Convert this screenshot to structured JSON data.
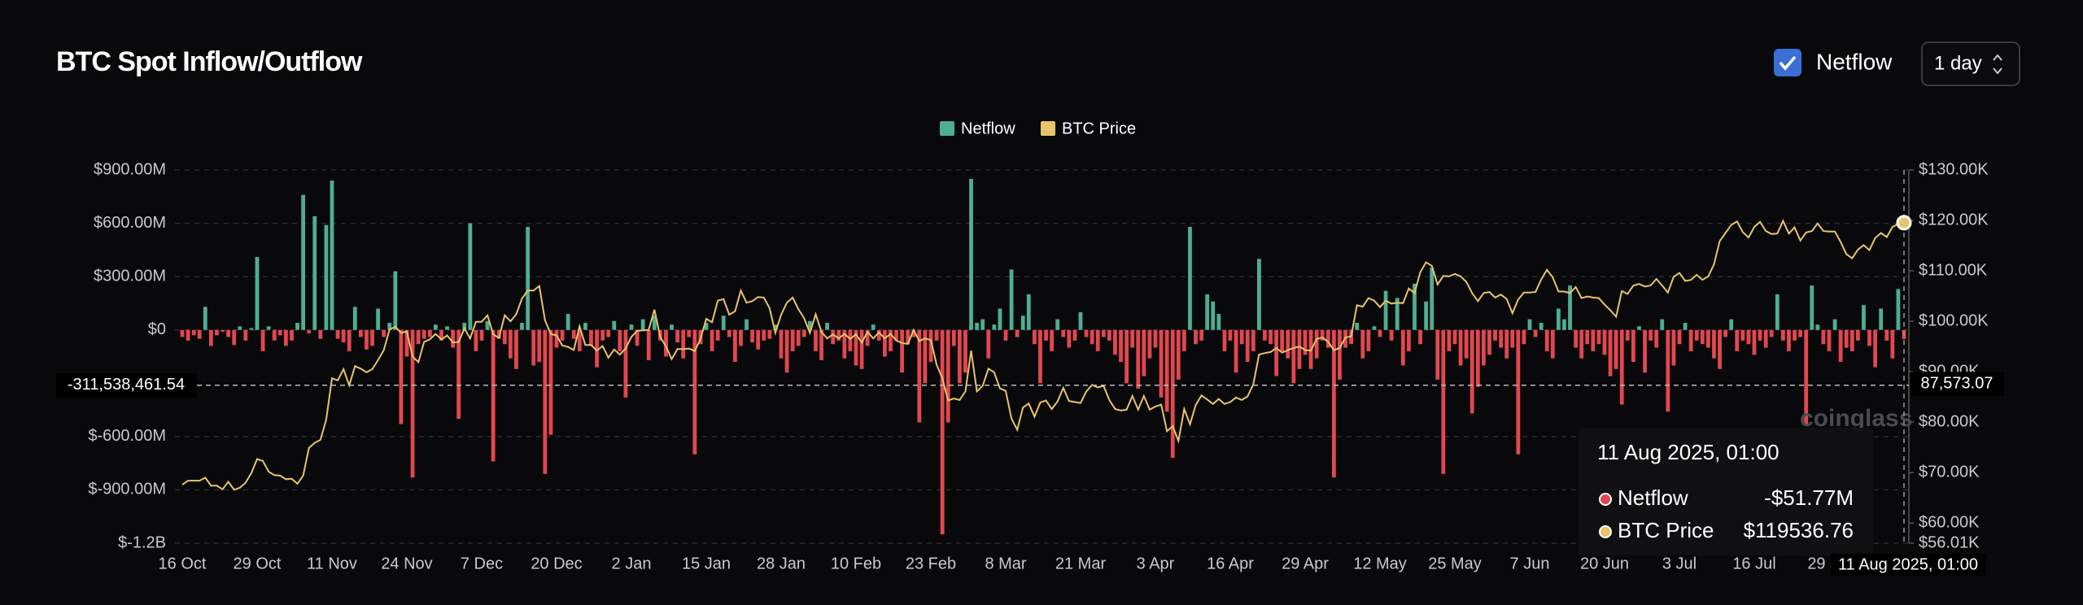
{
  "header": {
    "title": "BTC Spot Inflow/Outflow",
    "checkbox_label": "Netflow",
    "interval": "1 day"
  },
  "chart_data": {
    "type": "bar_line",
    "categories": [
      "16 Oct",
      null,
      null,
      null,
      null,
      null,
      null,
      null,
      null,
      null,
      null,
      null,
      null,
      "29 Oct",
      null,
      null,
      null,
      null,
      null,
      null,
      null,
      null,
      null,
      null,
      null,
      null,
      "11 Nov",
      null,
      null,
      null,
      null,
      null,
      null,
      null,
      null,
      null,
      null,
      null,
      null,
      "24 Nov",
      null,
      null,
      null,
      null,
      null,
      null,
      null,
      null,
      null,
      null,
      null,
      null,
      "7 Dec",
      null,
      null,
      null,
      null,
      null,
      null,
      null,
      null,
      null,
      null,
      null,
      null,
      "20 Dec",
      null,
      null,
      null,
      null,
      null,
      null,
      null,
      null,
      null,
      null,
      null,
      null,
      "2 Jan",
      null,
      null,
      null,
      null,
      null,
      null,
      null,
      null,
      null,
      null,
      null,
      null,
      "15 Jan",
      null,
      null,
      null,
      null,
      null,
      null,
      null,
      null,
      null,
      null,
      null,
      null,
      "28 Jan",
      null,
      null,
      null,
      null,
      null,
      null,
      null,
      null,
      null,
      null,
      null,
      null,
      "10 Feb",
      null,
      null,
      null,
      null,
      null,
      null,
      null,
      null,
      null,
      null,
      null,
      null,
      "23 Feb",
      null,
      null,
      null,
      null,
      null,
      null,
      null,
      null,
      null,
      null,
      null,
      null,
      "8 Mar",
      null,
      null,
      null,
      null,
      null,
      null,
      null,
      null,
      null,
      null,
      null,
      null,
      "21 Mar",
      null,
      null,
      null,
      null,
      null,
      null,
      null,
      null,
      null,
      null,
      null,
      null,
      "3 Apr",
      null,
      null,
      null,
      null,
      null,
      null,
      null,
      null,
      null,
      null,
      null,
      null,
      "16 Apr",
      null,
      null,
      null,
      null,
      null,
      null,
      null,
      null,
      null,
      null,
      null,
      null,
      "29 Apr",
      null,
      null,
      null,
      null,
      null,
      null,
      null,
      null,
      null,
      null,
      null,
      null,
      "12 May",
      null,
      null,
      null,
      null,
      null,
      null,
      null,
      null,
      null,
      null,
      null,
      null,
      "25 May",
      null,
      null,
      null,
      null,
      null,
      null,
      null,
      null,
      null,
      null,
      null,
      null,
      "7 Jun",
      null,
      null,
      null,
      null,
      null,
      null,
      null,
      null,
      null,
      null,
      null,
      null,
      "20 Jun",
      null,
      null,
      null,
      null,
      null,
      null,
      null,
      null,
      null,
      null,
      null,
      null,
      "3 Jul",
      null,
      null,
      null,
      null,
      null,
      null,
      null,
      null,
      null,
      null,
      null,
      null,
      "16 Jul",
      null,
      null,
      null,
      null,
      null,
      null,
      null,
      null,
      null,
      null,
      null,
      null,
      "29 Jul",
      null,
      null,
      null,
      null,
      null,
      null,
      null,
      null,
      null,
      null,
      null,
      null,
      null
    ],
    "series": [
      {
        "name": "Netflow",
        "color": "#4fae91",
        "neg_color": "#e2474f",
        "values": [
          -40,
          -60,
          -30,
          -50,
          130,
          -90,
          -30,
          -10,
          -40,
          -85,
          20,
          -60,
          10,
          410,
          -120,
          20,
          -60,
          -30,
          -90,
          -60,
          40,
          760,
          -20,
          640,
          -50,
          590,
          840,
          -50,
          -70,
          -120,
          130,
          -40,
          -110,
          -90,
          120,
          -40,
          40,
          330,
          -530,
          -150,
          -830,
          -80,
          -50,
          -40,
          30,
          -60,
          20,
          -100,
          -500,
          40,
          600,
          -120,
          -60,
          50,
          -740,
          -50,
          -80,
          -160,
          -220,
          40,
          580,
          -200,
          -180,
          -810,
          -590,
          -100,
          -60,
          90,
          -50,
          -120,
          40,
          -90,
          -210,
          -60,
          -40,
          50,
          -120,
          -380,
          30,
          -90,
          60,
          -170,
          80,
          -60,
          -150,
          30,
          -70,
          -160,
          -40,
          -700,
          -80,
          40,
          -120,
          -60,
          80,
          -40,
          -180,
          -90,
          60,
          -70,
          -110,
          -60,
          -50,
          30,
          -160,
          -240,
          -120,
          -90,
          -40,
          50,
          -120,
          -170,
          40,
          -80,
          -60,
          -160,
          -120,
          -200,
          -220,
          -90,
          30,
          -60,
          -150,
          -120,
          -60,
          -240,
          -80,
          -40,
          -520,
          -300,
          -180,
          -60,
          -1150,
          -520,
          -90,
          -300,
          -240,
          850,
          40,
          60,
          -160,
          30,
          120,
          -60,
          340,
          -40,
          80,
          200,
          -80,
          -300,
          -60,
          -120,
          60,
          -40,
          -100,
          -60,
          100,
          -40,
          -80,
          -120,
          -40,
          -60,
          -140,
          -180,
          -300,
          -100,
          -330,
          -260,
          -160,
          -100,
          -380,
          -460,
          -720,
          -280,
          -120,
          580,
          -80,
          -60,
          200,
          160,
          90,
          -120,
          -60,
          -240,
          -80,
          -180,
          -120,
          400,
          -60,
          -80,
          -260,
          -120,
          -160,
          -300,
          -220,
          -140,
          -220,
          -160,
          -60,
          -100,
          -830,
          -280,
          -100,
          -80,
          40,
          -160,
          -120,
          20,
          -40,
          220,
          -60,
          180,
          -200,
          -120,
          260,
          -80,
          160,
          350,
          -280,
          -810,
          -120,
          -80,
          -200,
          -160,
          -470,
          -320,
          -200,
          -140,
          -60,
          -100,
          -160,
          -100,
          -700,
          -80,
          60,
          -40,
          40,
          -120,
          -160,
          120,
          60,
          250,
          -100,
          -160,
          -80,
          -120,
          -80,
          -140,
          -260,
          -220,
          -420,
          -60,
          -180,
          20,
          -240,
          -60,
          -100,
          60,
          -460,
          -200,
          -80,
          40,
          -120,
          -60,
          -80,
          -100,
          -160,
          -220,
          -40,
          60,
          -120,
          -60,
          -80,
          -140,
          -60,
          -100,
          -40,
          200,
          -60,
          -120,
          -60,
          -40,
          -530,
          250,
          30,
          -80,
          -120,
          60,
          -180,
          -100,
          -120,
          -60,
          140,
          -90,
          -210,
          120,
          -60,
          -160,
          230,
          -51.77
        ]
      },
      {
        "name": "BTC Price",
        "color": "#e8c46a",
        "axis": "y2",
        "values": [
          67.6,
          68.4,
          68.4,
          68.4,
          69.0,
          67.4,
          67.4,
          66.7,
          68.2,
          66.6,
          67.0,
          68.0,
          69.9,
          72.7,
          72.3,
          70.2,
          69.5,
          69.4,
          68.7,
          68.8,
          67.8,
          69.4,
          74.9,
          75.9,
          76.5,
          80.5,
          88.7,
          88.3,
          90.5,
          87.3,
          91.1,
          90.6,
          89.9,
          90.5,
          92.3,
          94.3,
          98.4,
          98.9,
          97.7,
          98.0,
          93.0,
          91.9,
          95.9,
          96.4,
          97.5,
          96.4,
          97.2,
          95.8,
          95.9,
          98.6,
          96.6,
          99.9,
          99.9,
          101.2,
          97.4,
          96.7,
          101.2,
          100.0,
          101.4,
          104.5,
          106.1,
          106.1,
          107.0,
          100.2,
          97.5,
          97.2,
          95.2,
          94.9,
          94.3,
          99.0,
          95.3,
          95.3,
          94.2,
          95.1,
          92.8,
          94.4,
          93.4,
          94.6,
          96.9,
          98.1,
          98.2,
          98.3,
          102.3,
          96.9,
          95.0,
          92.5,
          94.5,
          94.5,
          94.6,
          94.1,
          96.5,
          100.5,
          99.8,
          104.1,
          104.4,
          101.3,
          102.0,
          106.1,
          103.7,
          104.0,
          104.8,
          104.7,
          102.6,
          97.7,
          101.3,
          103.7,
          104.7,
          102.4,
          100.6,
          97.7,
          101.4,
          97.9,
          96.6,
          97.4,
          96.6,
          97.5,
          96.5,
          97.4,
          95.8,
          97.9,
          96.6,
          97.8,
          96.6,
          97.5,
          96.2,
          95.7,
          95.5,
          98.3,
          96.1,
          96.6,
          96.3,
          91.4,
          88.7,
          84.3,
          84.7,
          84.4,
          86.1,
          94.2,
          86.1,
          87.2,
          90.6,
          89.9,
          86.7,
          86.2,
          80.7,
          78.5,
          82.9,
          83.7,
          81.1,
          83.9,
          84.3,
          82.6,
          84.1,
          86.8,
          84.2,
          84.0,
          83.8,
          86.1,
          87.4,
          86.9,
          87.2,
          84.4,
          82.6,
          82.3,
          82.5,
          85.2,
          82.5,
          85.2,
          82.5,
          83.1,
          83.5,
          78.2,
          79.2,
          76.3,
          82.6,
          79.6,
          83.4,
          85.3,
          84.5,
          83.6,
          84.6,
          83.6,
          84.0,
          84.9,
          84.4,
          85.1,
          87.5,
          93.4,
          93.7,
          93.9,
          94.7,
          93.8,
          94.3,
          94.7,
          95.0,
          94.3,
          94.2,
          96.5,
          96.8,
          95.9,
          94.3,
          94.7,
          96.8,
          97.0,
          103.2,
          102.9,
          104.6,
          104.1,
          102.8,
          104.1,
          103.5,
          103.7,
          103.6,
          106.5,
          105.6,
          109.7,
          111.7,
          111.0,
          107.3,
          109.0,
          108.9,
          109.4,
          108.9,
          107.8,
          105.6,
          104.0,
          105.6,
          105.8,
          104.7,
          105.3,
          104.4,
          101.6,
          104.3,
          105.7,
          105.7,
          105.8,
          108.3,
          110.2,
          108.7,
          105.9,
          105.9,
          105.6,
          106.8,
          104.6,
          104.9,
          104.7,
          104.6,
          103.3,
          102.2,
          100.9,
          106.0,
          105.4,
          107.1,
          107.4,
          106.9,
          107.1,
          108.4,
          107.1,
          105.7,
          108.8,
          109.6,
          108.0,
          108.2,
          109.2,
          108.2,
          108.9,
          111.3,
          115.9,
          117.5,
          119.1,
          119.8,
          117.7,
          116.6,
          118.7,
          119.7,
          117.9,
          117.3,
          117.4,
          119.9,
          117.4,
          118.6,
          116.0,
          117.6,
          117.9,
          119.4,
          117.9,
          117.8,
          117.8,
          115.7,
          113.3,
          112.5,
          114.2,
          115.1,
          114.1,
          116.5,
          117.5,
          116.7,
          118.7,
          119.3,
          119.53676
        ]
      }
    ],
    "ylim": [
      -1200,
      900
    ],
    "yticks": [
      {
        "value": 900,
        "label": "$900.00M"
      },
      {
        "value": 600,
        "label": "$600.00M"
      },
      {
        "value": 300,
        "label": "$300.00M"
      },
      {
        "value": 0,
        "label": "$0"
      },
      {
        "value": -600,
        "label": "$-600.00M"
      },
      {
        "value": -900,
        "label": "$-900.00M"
      },
      {
        "value": -1200,
        "label": "$-1.2B"
      }
    ],
    "y2lim": [
      56.01,
      130
    ],
    "y2ticks": [
      {
        "value": 130,
        "label": "$130.00K"
      },
      {
        "value": 120,
        "label": "$120.00K"
      },
      {
        "value": 110,
        "label": "$110.00K"
      },
      {
        "value": 100,
        "label": "$100.00K"
      },
      {
        "value": 90,
        "label": "$90.00K"
      },
      {
        "value": 80,
        "label": "$80.00K"
      },
      {
        "value": 70,
        "label": "$70.00K"
      },
      {
        "value": 60,
        "label": "$60.00K"
      },
      {
        "value": 56.01,
        "label": "$56.01K"
      }
    ],
    "grid": true,
    "crosshair": {
      "y": {
        "value": -311.53846154,
        "label": "-311,538,461.54"
      },
      "y2": {
        "value": 87.57307,
        "label": "87,573.07"
      },
      "x_label": "11 Aug 2025, 01:00"
    },
    "tooltip": {
      "title": "11 Aug 2025, 01:00",
      "rows": [
        {
          "name": "Netflow",
          "value": "-$51.77M"
        },
        {
          "name": "BTC Price",
          "value": "$119536.76"
        }
      ]
    },
    "watermark": "coinglass"
  }
}
